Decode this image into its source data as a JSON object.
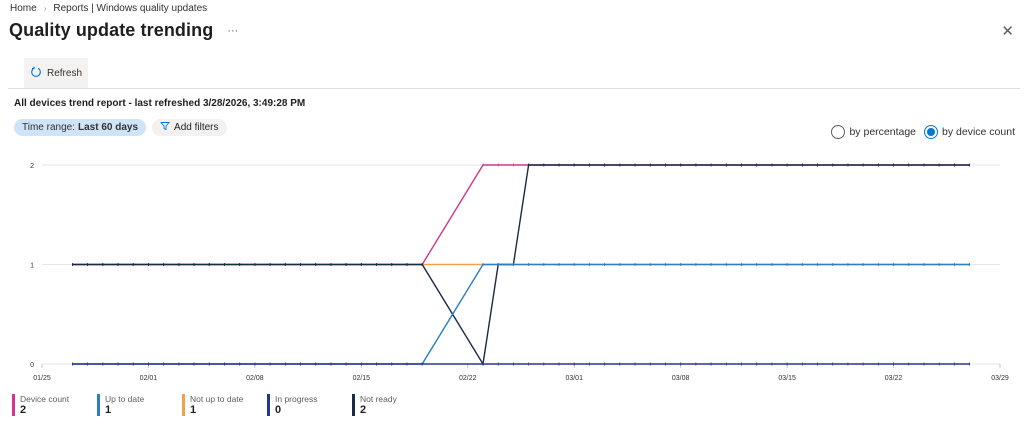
{
  "breadcrumb": {
    "home": "Home",
    "current": "Reports | Windows quality updates"
  },
  "page_title": "Quality update trending",
  "more_label": "···",
  "close_label": "✕",
  "toolbar": {
    "refresh_label": "Refresh"
  },
  "report_heading": "All devices trend report - last refreshed 3/28/2026, 3:49:28 PM",
  "filters": {
    "time_range_label": "Time range:",
    "time_range_value": "Last 60 days",
    "add_filters_label": "Add filters"
  },
  "view_mode": {
    "options": [
      "by percentage",
      "by device count"
    ],
    "selected": "by device count"
  },
  "legend": [
    {
      "name": "Device count",
      "value": "2",
      "color": "#d6358f"
    },
    {
      "name": "Up to date",
      "value": "1",
      "color": "#2b7fc4"
    },
    {
      "name": "Not up to date",
      "value": "1",
      "color": "#f5a04a"
    },
    {
      "name": "In progress",
      "value": "0",
      "color": "#26368a"
    },
    {
      "name": "Not ready",
      "value": "2",
      "color": "#1b2a47"
    }
  ],
  "chart_data": {
    "type": "line",
    "xlabel": "",
    "ylabel": "",
    "ylim": [
      0,
      2
    ],
    "yticks": [
      "0",
      "1",
      "2"
    ],
    "xrange": [
      "01/25",
      "03/29"
    ],
    "xticks": [
      "01/25",
      "02/01",
      "02/08",
      "02/15",
      "02/22",
      "03/01",
      "03/08",
      "03/15",
      "03/22",
      "03/29"
    ],
    "grid": true,
    "legend_position": "bottom",
    "x": [
      "01/27",
      "01/28",
      "01/29",
      "01/30",
      "01/31",
      "02/01",
      "02/02",
      "02/03",
      "02/04",
      "02/05",
      "02/06",
      "02/07",
      "02/08",
      "02/09",
      "02/10",
      "02/11",
      "02/12",
      "02/13",
      "02/14",
      "02/15",
      "02/16",
      "02/17",
      "02/18",
      "02/19",
      "02/23",
      "02/24",
      "02/25",
      "02/26",
      "02/27",
      "02/28",
      "03/01",
      "03/02",
      "03/03",
      "03/04",
      "03/05",
      "03/06",
      "03/07",
      "03/08",
      "03/09",
      "03/10",
      "03/11",
      "03/12",
      "03/13",
      "03/14",
      "03/15",
      "03/16",
      "03/17",
      "03/18",
      "03/19",
      "03/20",
      "03/21",
      "03/22",
      "03/23",
      "03/24",
      "03/25",
      "03/26",
      "03/27"
    ],
    "series": [
      {
        "name": "Not up to date",
        "values": [
          1,
          1,
          1,
          1,
          1,
          1,
          1,
          1,
          1,
          1,
          1,
          1,
          1,
          1,
          1,
          1,
          1,
          1,
          1,
          1,
          1,
          1,
          1,
          1,
          1,
          1,
          1,
          1,
          1,
          1,
          1,
          1,
          1,
          1,
          1,
          1,
          1,
          1,
          1,
          1,
          1,
          1,
          1,
          1,
          1,
          1,
          1,
          1,
          1,
          1,
          1,
          1,
          1,
          1,
          1,
          1,
          1
        ]
      },
      {
        "name": "Device count",
        "values": [
          1,
          1,
          1,
          1,
          1,
          1,
          1,
          1,
          1,
          1,
          1,
          1,
          1,
          1,
          1,
          1,
          1,
          1,
          1,
          1,
          1,
          1,
          1,
          1,
          2,
          2,
          2,
          2,
          2,
          2,
          2,
          2,
          2,
          2,
          2,
          2,
          2,
          2,
          2,
          2,
          2,
          2,
          2,
          2,
          2,
          2,
          2,
          2,
          2,
          2,
          2,
          2,
          2,
          2,
          2,
          2,
          2
        ]
      },
      {
        "name": "Not ready",
        "values": [
          1,
          1,
          1,
          1,
          1,
          1,
          1,
          1,
          1,
          1,
          1,
          1,
          1,
          1,
          1,
          1,
          1,
          1,
          1,
          1,
          1,
          1,
          1,
          1,
          0,
          1,
          1,
          2,
          2,
          2,
          2,
          2,
          2,
          2,
          2,
          2,
          2,
          2,
          2,
          2,
          2,
          2,
          2,
          2,
          2,
          2,
          2,
          2,
          2,
          2,
          2,
          2,
          2,
          2,
          2,
          2,
          2
        ]
      },
      {
        "name": "Up to date",
        "values": [
          0,
          0,
          0,
          0,
          0,
          0,
          0,
          0,
          0,
          0,
          0,
          0,
          0,
          0,
          0,
          0,
          0,
          0,
          0,
          0,
          0,
          0,
          0,
          0,
          1,
          1,
          1,
          1,
          1,
          1,
          1,
          1,
          1,
          1,
          1,
          1,
          1,
          1,
          1,
          1,
          1,
          1,
          1,
          1,
          1,
          1,
          1,
          1,
          1,
          1,
          1,
          1,
          1,
          1,
          1,
          1,
          1
        ]
      },
      {
        "name": "In progress",
        "values": [
          0,
          0,
          0,
          0,
          0,
          0,
          0,
          0,
          0,
          0,
          0,
          0,
          0,
          0,
          0,
          0,
          0,
          0,
          0,
          0,
          0,
          0,
          0,
          0,
          0,
          0,
          0,
          0,
          0,
          0,
          0,
          0,
          0,
          0,
          0,
          0,
          0,
          0,
          0,
          0,
          0,
          0,
          0,
          0,
          0,
          0,
          0,
          0,
          0,
          0,
          0,
          0,
          0,
          0,
          0,
          0,
          0
        ]
      }
    ]
  }
}
